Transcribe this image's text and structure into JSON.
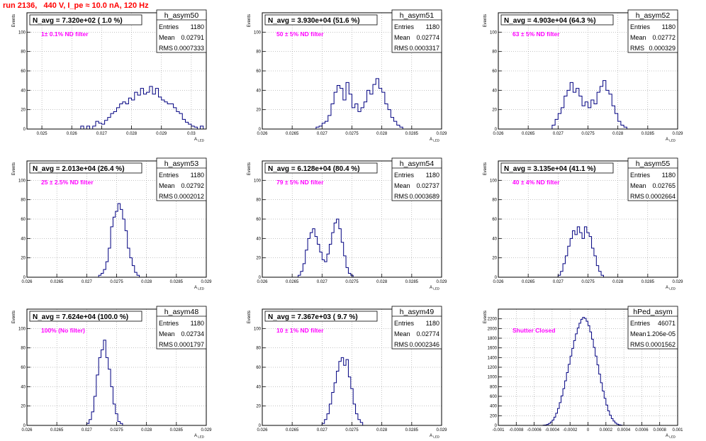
{
  "page_title": "run 2136,   440 V, I_pe ≈ 10.0 nA, 120 Hz",
  "colors": {
    "title": "#ff0000",
    "histogram": "#000080",
    "annotation": "#ff00ff",
    "frame": "#000000",
    "grid": "#888888"
  },
  "stats_labels": {
    "entries": "Entries",
    "mean": "Mean",
    "rms": "RMS"
  },
  "common_ylabel": "Events",
  "common_xlabel": "A_LED",
  "chart_data": [
    {
      "type": "histogram",
      "name": "h_asym50",
      "title": "N_avg = 7.320e+02 ( 1.0 %)",
      "annotation": "1± 0.1% ND filter",
      "entries": "1180",
      "mean": "0.02791",
      "rms": "0.0007333",
      "xlim": [
        0.0245,
        0.0305
      ],
      "ylim": [
        0,
        120
      ],
      "xticks": [
        0.025,
        0.026,
        0.027,
        0.028,
        0.029,
        0.03
      ],
      "xtick_labels": [
        "0.025",
        "0.026",
        "0.027",
        "0.028",
        "0.029",
        "0.03"
      ],
      "yticks": [
        0,
        20,
        40,
        60,
        80,
        100
      ],
      "ytick_labels": [
        "0",
        "20",
        "40",
        "60",
        "80",
        "100"
      ],
      "grid": true,
      "bins": {
        "start": 0.0262,
        "width": 0.0001,
        "counts": [
          0,
          3,
          0,
          3,
          0,
          3,
          8,
          6,
          5,
          9,
          12,
          16,
          18,
          22,
          26,
          28,
          26,
          32,
          30,
          38,
          35,
          42,
          36,
          38,
          44,
          36,
          42,
          33,
          30,
          28,
          26,
          26,
          22,
          18,
          16,
          10,
          7,
          5,
          3,
          2,
          0,
          3
        ]
      }
    },
    {
      "type": "histogram",
      "name": "h_asym51",
      "title": "N_avg = 3.930e+04 (51.6 %)",
      "annotation": "50 ± 5% ND filter",
      "entries": "1180",
      "mean": "0.02774",
      "rms": "0.0003317",
      "xlim": [
        0.026,
        0.029
      ],
      "ylim": [
        0,
        120
      ],
      "xticks": [
        0.026,
        0.0265,
        0.027,
        0.0275,
        0.028,
        0.0285,
        0.029
      ],
      "xtick_labels": [
        "0.026",
        "0.0265",
        "0.027",
        "0.0275",
        "0.028",
        "0.0285",
        "0.029"
      ],
      "yticks": [
        0,
        20,
        40,
        60,
        80,
        100
      ],
      "ytick_labels": [
        "0",
        "20",
        "40",
        "60",
        "80",
        "100"
      ],
      "grid": true,
      "bins": {
        "start": 0.0269,
        "width": 5e-05,
        "counts": [
          2,
          3,
          6,
          8,
          14,
          26,
          38,
          45,
          42,
          30,
          48,
          36,
          22,
          26,
          18,
          22,
          28,
          40,
          36,
          46,
          52,
          42,
          38,
          26,
          20,
          12,
          8,
          4,
          2
        ]
      }
    },
    {
      "type": "histogram",
      "name": "h_asym52",
      "title": "N_avg = 4.903e+04 (64.3 %)",
      "annotation": "63 ± 5% ND filter",
      "entries": "1180",
      "mean": "0.02772",
      "rms": "0.000329",
      "xlim": [
        0.026,
        0.029
      ],
      "ylim": [
        0,
        120
      ],
      "xticks": [
        0.026,
        0.0265,
        0.027,
        0.0275,
        0.028,
        0.0285,
        0.029
      ],
      "xtick_labels": [
        "0.026",
        "0.0265",
        "0.027",
        "0.0275",
        "0.028",
        "0.0285",
        "0.029"
      ],
      "yticks": [
        0,
        20,
        40,
        60,
        80,
        100
      ],
      "ytick_labels": [
        "0",
        "20",
        "40",
        "60",
        "80",
        "100"
      ],
      "grid": true,
      "bins": {
        "start": 0.0269,
        "width": 5e-05,
        "counts": [
          4,
          10,
          16,
          22,
          34,
          40,
          48,
          38,
          42,
          34,
          24,
          28,
          22,
          30,
          26,
          38,
          44,
          50,
          40,
          36,
          24,
          16,
          8,
          4,
          2
        ]
      }
    },
    {
      "type": "histogram",
      "name": "h_asym53",
      "title": "N_avg = 2.013e+04 (26.4 %)",
      "annotation": "25 ± 2.5% ND filter",
      "entries": "1180",
      "mean": "0.02792",
      "rms": "0.0002012",
      "xlim": [
        0.026,
        0.029
      ],
      "ylim": [
        0,
        120
      ],
      "xticks": [
        0.026,
        0.0265,
        0.027,
        0.0275,
        0.028,
        0.0285,
        0.029
      ],
      "xtick_labels": [
        "0.026",
        "0.0265",
        "0.027",
        "0.0275",
        "0.028",
        "0.0285",
        "0.029"
      ],
      "yticks": [
        0,
        20,
        40,
        60,
        80,
        100
      ],
      "ytick_labels": [
        "0",
        "20",
        "40",
        "60",
        "80",
        "100"
      ],
      "grid": true,
      "bins": {
        "start": 0.0272,
        "width": 4e-05,
        "counts": [
          2,
          4,
          8,
          16,
          30,
          52,
          62,
          68,
          76,
          70,
          60,
          48,
          30,
          20,
          12,
          5,
          2
        ]
      }
    },
    {
      "type": "histogram",
      "name": "h_asym54",
      "title": "N_avg = 6.128e+04 (80.4 %)",
      "annotation": "79 ± 5% ND filter",
      "entries": "1180",
      "mean": "0.02737",
      "rms": "0.0003689",
      "xlim": [
        0.026,
        0.029
      ],
      "ylim": [
        0,
        120
      ],
      "xticks": [
        0.026,
        0.0265,
        0.027,
        0.0275,
        0.028,
        0.0285,
        0.029
      ],
      "xtick_labels": [
        "0.026",
        "0.0265",
        "0.027",
        "0.0275",
        "0.028",
        "0.0285",
        "0.029"
      ],
      "yticks": [
        0,
        20,
        40,
        60,
        80,
        100
      ],
      "ytick_labels": [
        "0",
        "20",
        "40",
        "60",
        "80",
        "100"
      ],
      "grid": true,
      "bins": {
        "start": 0.0266,
        "width": 4e-05,
        "counts": [
          2,
          6,
          14,
          28,
          40,
          46,
          50,
          42,
          34,
          26,
          18,
          16,
          24,
          34,
          46,
          56,
          60,
          50,
          36,
          22,
          10,
          4,
          2
        ]
      }
    },
    {
      "type": "histogram",
      "name": "h_asym55",
      "title": "N_avg = 3.135e+04 (41.1 %)",
      "annotation": "40 ± 4% ND filter",
      "entries": "1180",
      "mean": "0.02765",
      "rms": "0.0002664",
      "xlim": [
        0.026,
        0.029
      ],
      "ylim": [
        0,
        120
      ],
      "xticks": [
        0.026,
        0.0265,
        0.027,
        0.0275,
        0.028,
        0.0285,
        0.029
      ],
      "xtick_labels": [
        "0.026",
        "0.0265",
        "0.027",
        "0.0275",
        "0.028",
        "0.0285",
        "0.029"
      ],
      "yticks": [
        0,
        20,
        40,
        60,
        80,
        100
      ],
      "ytick_labels": [
        "0",
        "20",
        "40",
        "60",
        "80",
        "100"
      ],
      "grid": true,
      "bins": {
        "start": 0.027,
        "width": 4e-05,
        "counts": [
          2,
          6,
          14,
          22,
          32,
          40,
          48,
          44,
          52,
          46,
          40,
          52,
          46,
          42,
          30,
          22,
          12,
          6,
          2
        ]
      }
    },
    {
      "type": "histogram",
      "name": "h_asym48",
      "title": "N_avg = 7.624e+04 (100.0 %)",
      "annotation": "100% (No filter)",
      "entries": "1180",
      "mean": "0.02734",
      "rms": "0.0001797",
      "xlim": [
        0.026,
        0.029
      ],
      "ylim": [
        0,
        120
      ],
      "xticks": [
        0.026,
        0.0265,
        0.027,
        0.0275,
        0.028,
        0.0285,
        0.029
      ],
      "xtick_labels": [
        "0.026",
        "0.0265",
        "0.027",
        "0.0275",
        "0.028",
        "0.0285",
        "0.029"
      ],
      "yticks": [
        0,
        20,
        40,
        60,
        80,
        100
      ],
      "ytick_labels": [
        "0",
        "20",
        "40",
        "60",
        "80",
        "100"
      ],
      "grid": true,
      "bins": {
        "start": 0.027,
        "width": 4e-05,
        "counts": [
          2,
          6,
          14,
          30,
          52,
          70,
          78,
          88,
          70,
          58,
          40,
          22,
          12,
          4,
          2
        ]
      }
    },
    {
      "type": "histogram",
      "name": "h_asym49",
      "title": "N_avg = 7.367e+03 ( 9.7 %)",
      "annotation": "10 ± 1% ND filter",
      "entries": "1180",
      "mean": "0.02774",
      "rms": "0.0002346",
      "xlim": [
        0.026,
        0.029
      ],
      "ylim": [
        0,
        120
      ],
      "xticks": [
        0.026,
        0.0265,
        0.027,
        0.0275,
        0.028,
        0.0285,
        0.029
      ],
      "xtick_labels": [
        "0.026",
        "0.0265",
        "0.027",
        "0.0275",
        "0.028",
        "0.0285",
        "0.029"
      ],
      "yticks": [
        0,
        20,
        40,
        60,
        80,
        100
      ],
      "ytick_labels": [
        "0",
        "20",
        "40",
        "60",
        "80",
        "100"
      ],
      "grid": true,
      "bins": {
        "start": 0.027,
        "width": 4e-05,
        "counts": [
          2,
          6,
          12,
          22,
          34,
          44,
          56,
          66,
          70,
          62,
          68,
          50,
          38,
          22,
          12,
          6,
          3
        ]
      }
    },
    {
      "type": "histogram",
      "name": "hPed_asym",
      "title": "",
      "annotation": "Shutter Closed",
      "entries": "46071",
      "mean": "1.206e-05",
      "rms": "0.0001562",
      "xlim": [
        -0.001,
        0.001
      ],
      "ylim": [
        0,
        2400
      ],
      "xticks": [
        -0.001,
        -0.0008,
        -0.0006,
        -0.0004,
        -0.0002,
        0,
        0.0002,
        0.0004,
        0.0006,
        0.0008,
        0.001
      ],
      "xtick_labels": [
        "-0.001",
        "-0.0008",
        "-0.0006",
        "-0.0004",
        "-0.0002",
        "0",
        "0.0002",
        "0.0004",
        "0.0006",
        "0.0008",
        "0.001"
      ],
      "yticks": [
        0,
        200,
        400,
        600,
        800,
        1000,
        1200,
        1400,
        1600,
        1800,
        2000,
        2200
      ],
      "ytick_labels": [
        "0",
        "200",
        "400",
        "600",
        "800",
        "1000",
        "1200",
        "1400",
        "1600",
        "1800",
        "2000",
        "2200"
      ],
      "grid": true,
      "bins": {
        "start": -0.0005,
        "width": 2e-05,
        "counts": [
          5,
          10,
          20,
          40,
          70,
          110,
          170,
          250,
          350,
          470,
          610,
          760,
          920,
          1090,
          1260,
          1430,
          1590,
          1750,
          1890,
          2010,
          2110,
          2190,
          2230,
          2210,
          2150,
          2060,
          1930,
          1780,
          1610,
          1430,
          1250,
          1060,
          880,
          710,
          560,
          420,
          300,
          210,
          140,
          90,
          50,
          25,
          12,
          6
        ]
      }
    }
  ]
}
